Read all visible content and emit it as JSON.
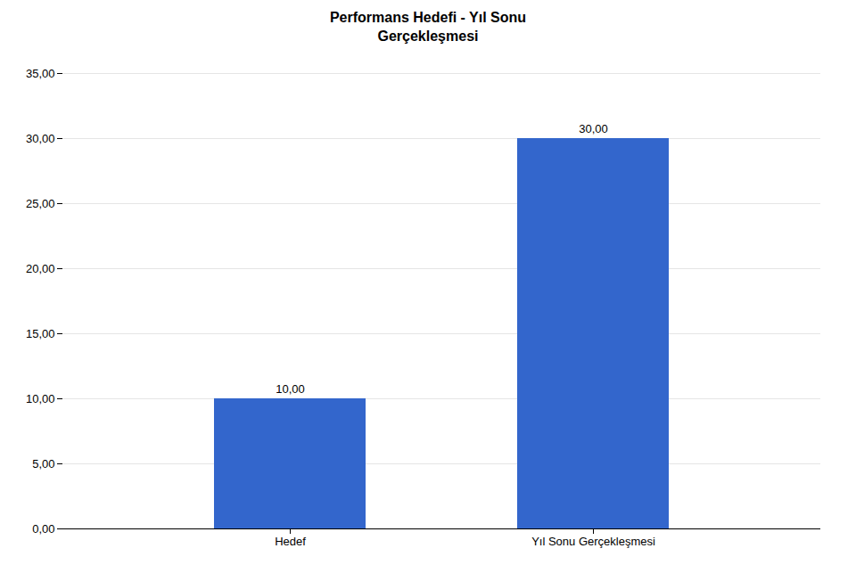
{
  "chart_data": {
    "type": "bar",
    "title": "Performans Hedefi - Yıl Sonu\nGerçekleşmesi",
    "categories": [
      "Hedef",
      "Yıl Sonu Gerçekleşmesi"
    ],
    "values": [
      10.0,
      30.0
    ],
    "value_labels": [
      "10,00",
      "30,00"
    ],
    "data_labels": true,
    "color": "#3366CC",
    "ylim": [
      0,
      35
    ],
    "yticks": [
      {
        "value": 0,
        "label": "0,00"
      },
      {
        "value": 5.0,
        "label": "5,00"
      },
      {
        "value": 10.0,
        "label": "10,00"
      },
      {
        "value": 15.0,
        "label": "15,00"
      },
      {
        "value": 20.0,
        "label": "20,00"
      },
      {
        "value": 25.0,
        "label": "25,00"
      },
      {
        "value": 30.0,
        "label": "30,00"
      },
      {
        "value": 35.0,
        "label": "35,00"
      }
    ],
    "grid": true
  }
}
